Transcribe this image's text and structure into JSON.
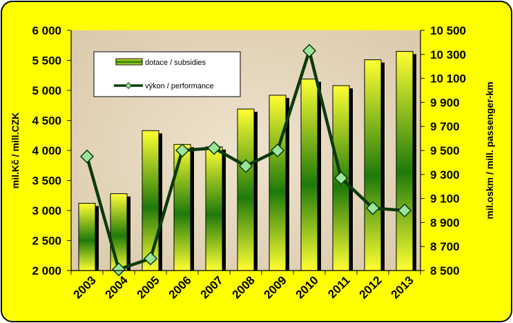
{
  "chart_data": {
    "type": "bar",
    "title": "",
    "categories": [
      "2003",
      "2004",
      "2005",
      "2006",
      "2007",
      "2008",
      "2009",
      "2010",
      "2011",
      "2012",
      "2013"
    ],
    "series": [
      {
        "name": "dotace / subsidies",
        "type": "bar",
        "axis": "left",
        "color": "#e6e600",
        "values": [
          3120,
          3280,
          4330,
          4100,
          4060,
          4690,
          4920,
          5190,
          5080,
          5510,
          5650
        ]
      },
      {
        "name": "výkon / performance",
        "type": "line",
        "axis": "right",
        "color": "#0b3a0b",
        "marker_color": "#9be59b",
        "values": [
          9450,
          8510,
          8600,
          9500,
          9520,
          9370,
          9500,
          10330,
          9270,
          9020,
          9000
        ]
      }
    ],
    "ylabel": "mil.Kč / mill.CZK",
    "ylim": [
      2000,
      6000
    ],
    "yticks": [
      "2 000",
      "2 500",
      "3 000",
      "3 500",
      "4 000",
      "4 500",
      "5 000",
      "5 500",
      "6 000"
    ],
    "y2label": "mil.oskm / mill. passenger-km",
    "y2lim": [
      8500,
      10500
    ],
    "y2ticks": [
      "8 500",
      "8 700",
      "8 900",
      "9 100",
      "9 300",
      "9 500",
      "9 700",
      "9 900",
      "10 100",
      "10 300",
      "10 500"
    ],
    "legend": "top-left",
    "grid": false,
    "frame_color": "#ffff00",
    "plot_background": "#e6d9c2"
  }
}
